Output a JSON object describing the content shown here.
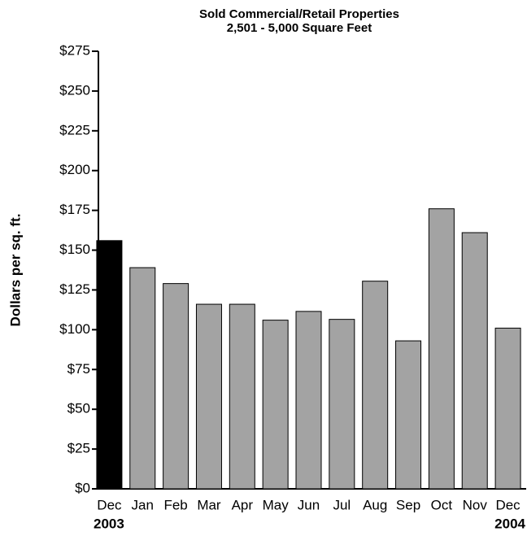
{
  "chart_data": {
    "type": "bar",
    "title": "Sold Commercial/Retail Properties",
    "subtitle": "2,501 - 5,000 Square Feet",
    "y_label": "Dollars per sq. ft.",
    "categories": [
      "Dec",
      "Jan",
      "Feb",
      "Mar",
      "Apr",
      "May",
      "Jun",
      "Jul",
      "Aug",
      "Sep",
      "Oct",
      "Nov",
      "Dec"
    ],
    "values": [
      156,
      139,
      129,
      116,
      116,
      106,
      111.5,
      106.5,
      130.5,
      93,
      176,
      161,
      101
    ],
    "colors": [
      "#000000",
      "#a3a3a3",
      "#a3a3a3",
      "#a3a3a3",
      "#a3a3a3",
      "#a3a3a3",
      "#a3a3a3",
      "#a3a3a3",
      "#a3a3a3",
      "#a3a3a3",
      "#a3a3a3",
      "#a3a3a3",
      "#a3a3a3"
    ],
    "year_labels": [
      "2003",
      "2004"
    ],
    "ylim": [
      0,
      275
    ],
    "yticks": [
      {
        "value": 0,
        "label": "$0"
      },
      {
        "value": 25,
        "label": "$25"
      },
      {
        "value": 50,
        "label": "$50"
      },
      {
        "value": 75,
        "label": "$75"
      },
      {
        "value": 100,
        "label": "$100"
      },
      {
        "value": 125,
        "label": "$125"
      },
      {
        "value": 150,
        "label": "$150"
      },
      {
        "value": 175,
        "label": "$175"
      },
      {
        "value": 200,
        "label": "$200"
      },
      {
        "value": 225,
        "label": "$225"
      },
      {
        "value": 250,
        "label": "$250"
      },
      {
        "value": 275,
        "label": "$275"
      }
    ]
  }
}
